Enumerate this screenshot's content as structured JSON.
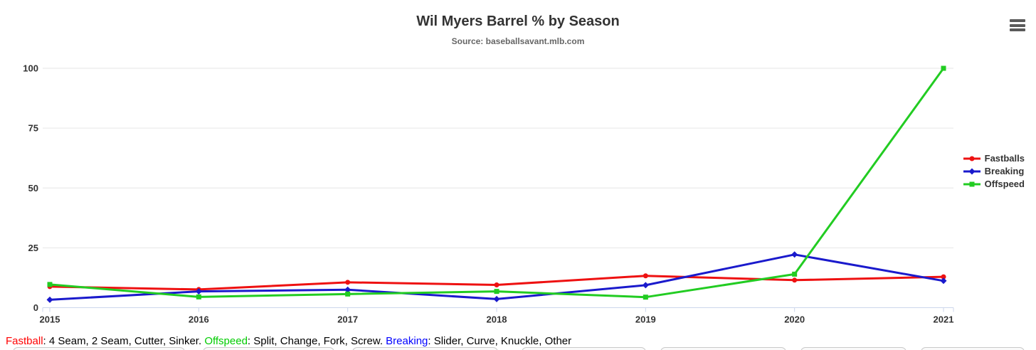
{
  "header": {
    "title": "Wil Myers Barrel % by Season",
    "subtitle": "Source: baseballsavant.mlb.com"
  },
  "menu": {
    "icon": "hamburger-menu-icon"
  },
  "chart_data": {
    "type": "line",
    "title": "Wil Myers Barrel % by Season",
    "subtitle": "Source: baseballsavant.mlb.com",
    "categories": [
      "2015",
      "2016",
      "2017",
      "2018",
      "2019",
      "2020",
      "2021"
    ],
    "yticks": [
      0,
      25,
      50,
      75,
      100
    ],
    "ylim": [
      0,
      100
    ],
    "grid": true,
    "legend_position": "right",
    "series": [
      {
        "name": "Fastballs",
        "color": "#ee1111",
        "marker": "circle",
        "values": [
          8.8,
          7.6,
          10.6,
          9.5,
          13.3,
          11.5,
          12.9
        ]
      },
      {
        "name": "Breaking",
        "color": "#1a1acc",
        "marker": "diamond",
        "values": [
          3.3,
          6.8,
          7.5,
          3.6,
          9.4,
          22.2,
          11.2
        ]
      },
      {
        "name": "Offspeed",
        "color": "#22cc22",
        "marker": "square",
        "values": [
          9.7,
          4.5,
          5.7,
          6.8,
          4.4,
          14.0,
          100
        ]
      }
    ],
    "axis_color": "#ccd6eb",
    "grid_color": "#e6e6e6",
    "label_color": "#333333"
  },
  "footer": {
    "parts": [
      {
        "text": "Fastball",
        "color": "#ff0000"
      },
      {
        "text": ": 4 Seam, 2 Seam, Cutter, Sinker. ",
        "color": "#000000"
      },
      {
        "text": "Offspeed",
        "color": "#00cc00"
      },
      {
        "text": ": Split, Change, Fork, Screw. ",
        "color": "#000000"
      },
      {
        "text": "Breaking",
        "color": "#0000ff"
      },
      {
        "text": ": Slider, Curve, Knuckle, Other",
        "color": "#000000"
      }
    ]
  }
}
